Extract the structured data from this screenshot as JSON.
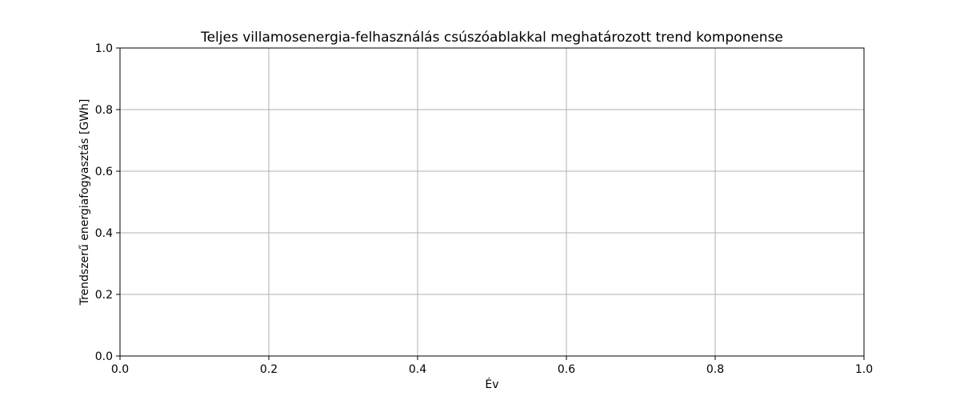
{
  "chart_data": {
    "type": "line",
    "title": "Teljes villamosenergia-felhasználás csúszóablakkal meghatározott trend komponense",
    "xlabel": "Év",
    "ylabel": "Trendszerű energiafogyasztás [GWh]",
    "xlim": [
      0.0,
      1.0
    ],
    "ylim": [
      0.0,
      1.0
    ],
    "x_ticks": [
      0.0,
      0.2,
      0.4,
      0.6,
      0.8,
      1.0
    ],
    "y_ticks": [
      0.0,
      0.2,
      0.4,
      0.6,
      0.8,
      1.0
    ],
    "x_tick_labels": [
      "0.0",
      "0.2",
      "0.4",
      "0.6",
      "0.8",
      "1.0"
    ],
    "y_tick_labels": [
      "0.0",
      "0.2",
      "0.4",
      "0.6",
      "0.8",
      "1.0"
    ],
    "grid": true,
    "series": []
  },
  "colors": {
    "grid": "#b0b0b0",
    "axis": "#000000",
    "text": "#000000",
    "background": "#ffffff"
  }
}
